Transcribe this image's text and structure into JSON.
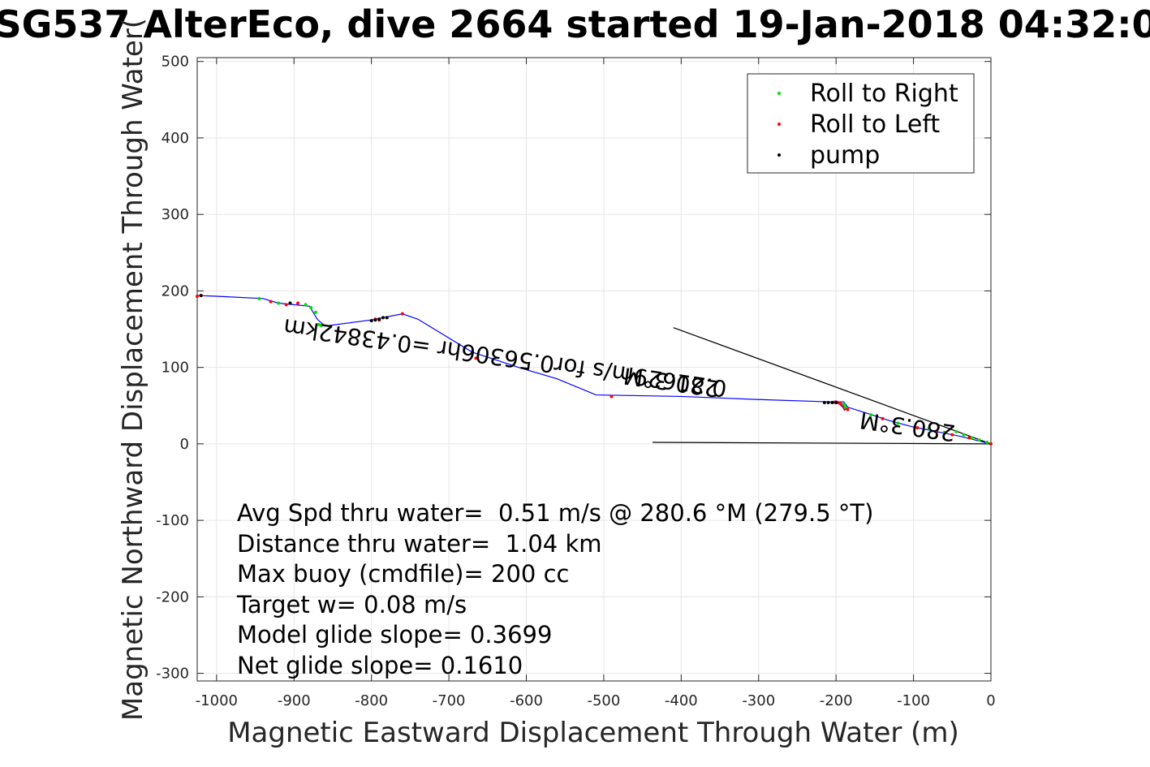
{
  "chart_data": {
    "type": "scatter",
    "title": "SG537 AlterEco, dive 2664 started 19-Jan-2018 04:32:0",
    "xlabel": "Magnetic Eastward Displacement Through Water (m)",
    "ylabel": "Magnetic Northward Displacement Through Water(",
    "xlim": [
      -1025,
      0
    ],
    "ylim": [
      -310,
      505
    ],
    "xticks": [
      -1000,
      -900,
      -800,
      -700,
      -600,
      -500,
      -400,
      -300,
      -200,
      -100,
      0
    ],
    "yticks": [
      -300,
      -200,
      -100,
      0,
      100,
      200,
      300,
      400,
      500
    ],
    "grid": true,
    "legend_position": "top-right",
    "legend": [
      {
        "label": "Roll to Right",
        "color": "#00dd00"
      },
      {
        "label": "Roll to Left",
        "color": "#ff0000"
      },
      {
        "label": "pump",
        "color": "#000000"
      }
    ],
    "track": {
      "color": "#0000ff",
      "x": [
        0,
        -20,
        -40,
        -60,
        -80,
        -100,
        -130,
        -160,
        -185,
        -190,
        -210,
        -300,
        -400,
        -510,
        -560,
        -610,
        -670,
        -740,
        -760,
        -800,
        -860,
        -870,
        -880,
        -920,
        -940,
        -1000,
        -1025
      ],
      "y": [
        0,
        5,
        10,
        14,
        18,
        22,
        30,
        40,
        48,
        55,
        55,
        58,
        62,
        64,
        85,
        100,
        120,
        163,
        170,
        162,
        154,
        163,
        180,
        184,
        190,
        193,
        194
      ]
    },
    "roll_right": {
      "x": [
        -5,
        -15,
        -25,
        -35,
        -45,
        -60,
        -80,
        -120,
        -155,
        -188,
        -190,
        -865,
        -868,
        -872,
        -878,
        -885,
        -920,
        -945
      ],
      "y": [
        2,
        5,
        8,
        12,
        16,
        15,
        20,
        27,
        38,
        48,
        52,
        155,
        156,
        172,
        178,
        182,
        184,
        190
      ]
    },
    "roll_left": {
      "x": [
        0,
        -28,
        -50,
        -70,
        -95,
        -140,
        -185,
        -195,
        -200,
        -490,
        -665,
        -760,
        -790,
        -795,
        -895,
        -910,
        -930,
        -1020,
        -1025
      ],
      "y": [
        0,
        8,
        12,
        16,
        21,
        33,
        45,
        53,
        54,
        62,
        112,
        170,
        162,
        163,
        184,
        182,
        186,
        194,
        193
      ],
      "highlight": {
        "x": [
          -205,
          -200,
          -195,
          -190,
          -188
        ],
        "y": [
          54,
          55,
          53,
          48,
          44
        ]
      }
    },
    "pump": {
      "x": [
        -200,
        -205,
        -210,
        -215,
        -780,
        -785,
        -790,
        -795,
        -800,
        -905,
        -1020
      ],
      "y": [
        54,
        54,
        54,
        54,
        165,
        165,
        163,
        162,
        161,
        184,
        194
      ]
    },
    "lines": [
      {
        "x": [
          0,
          -410
        ],
        "y": [
          0,
          152
        ]
      },
      {
        "x": [
          0,
          -437
        ],
        "y": [
          0,
          2
        ]
      }
    ],
    "annotations": [
      {
        "text": "280.3°M",
        "x": -45,
        "y": 24,
        "rotation": 188
      },
      {
        "text": "0.21629m/s for0.56306hr =0.43842km",
        "x": -340,
        "y": 82,
        "rotation": 188
      },
      {
        "text": "280.3°M",
        "x": -350,
        "y": 82,
        "rotation": 188
      }
    ],
    "stats": [
      "Avg Spd thru water=  0.51 m/s @ 280.6 °M (279.5 °T)",
      "Distance thru water=  1.04 km",
      "Max buoy (cmdfile)= 200 cc",
      "Target w= 0.08 m/s",
      "Model glide slope= 0.3699",
      "Net glide slope= 0.1610"
    ]
  }
}
